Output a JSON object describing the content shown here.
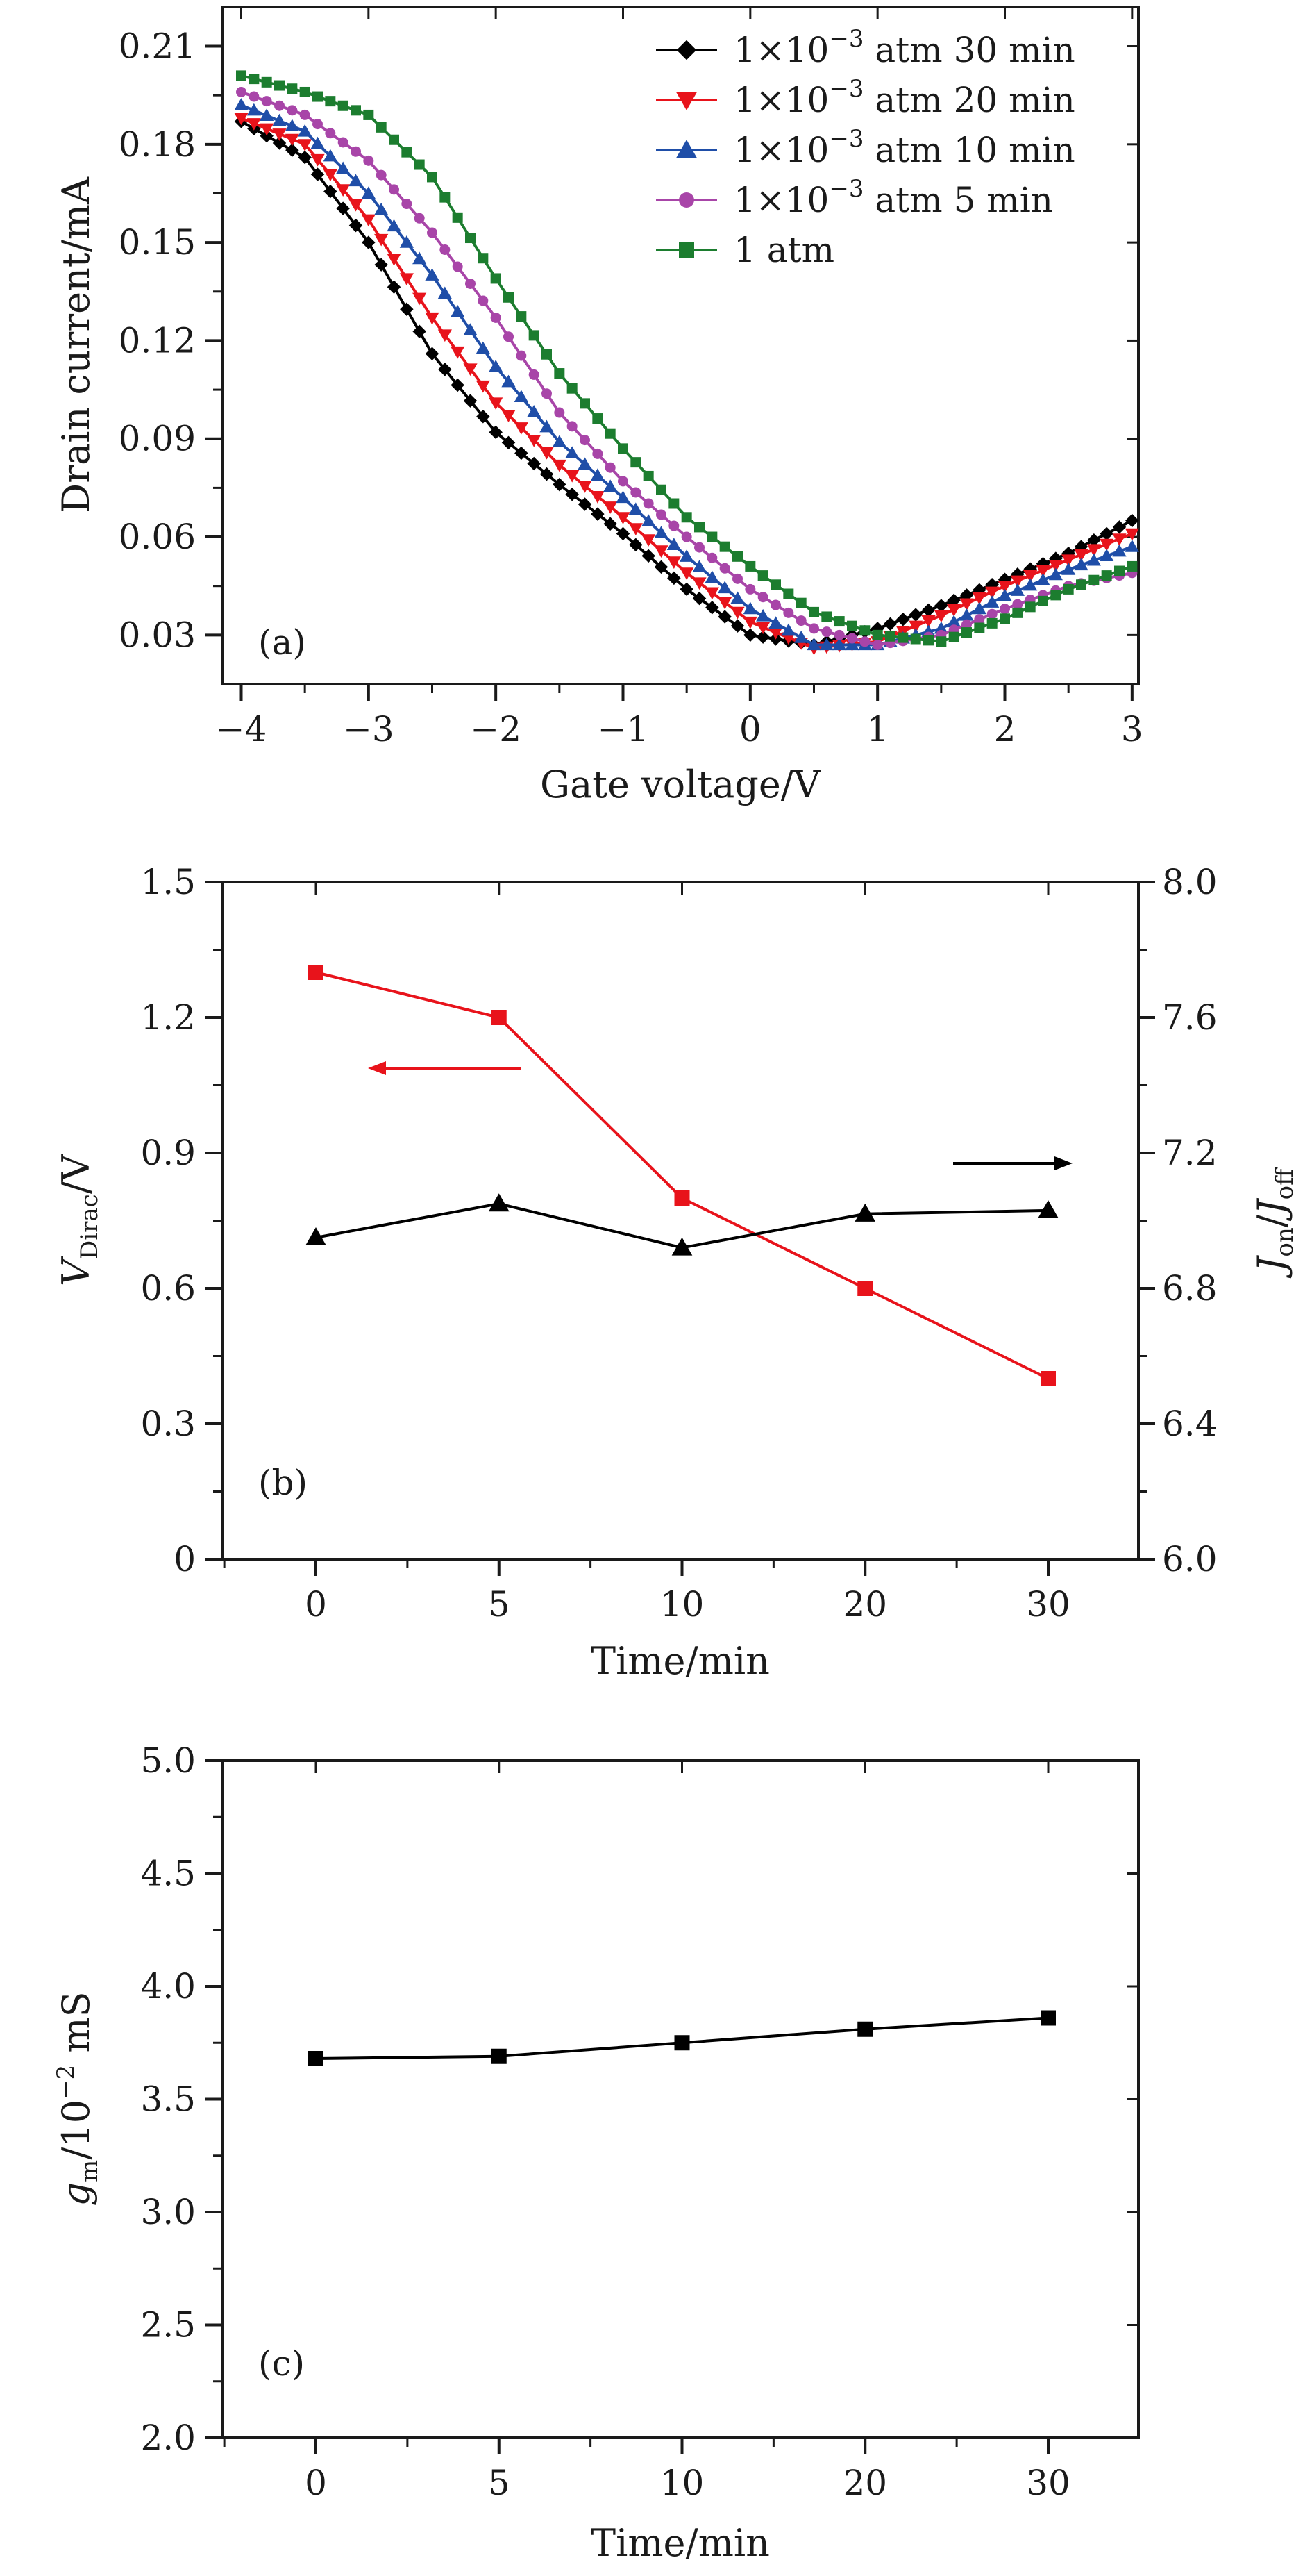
{
  "chart_data": [
    {
      "type": "line",
      "panel_label": "(a)",
      "xlabel": "Gate voltage/V",
      "ylabel": "Drain current/mA",
      "xlim": [
        -4.15,
        3.05
      ],
      "ylim": [
        0.015,
        0.222
      ],
      "x_ticks": [
        -4,
        -3,
        -2,
        -1,
        0,
        1,
        2,
        3
      ],
      "x_tick_labels": [
        "−4",
        "−3",
        "−2",
        "−1",
        "0",
        "1",
        "2",
        "3"
      ],
      "y_ticks": [
        0.03,
        0.06,
        0.09,
        0.12,
        0.15,
        0.18,
        0.21
      ],
      "y_tick_labels": [
        "0.03",
        "0.06",
        "0.09",
        "0.12",
        "0.15",
        "0.18",
        "0.21"
      ],
      "legend_position": "top-right",
      "x_points": [
        -4.0,
        -3.5,
        -3.0,
        -2.5,
        -2.0,
        -1.5,
        -1.0,
        -0.5,
        0.0,
        0.5,
        1.0,
        1.5,
        2.0,
        2.5,
        3.0
      ],
      "series": [
        {
          "name_prefix": "1×10",
          "name_sup": "−3",
          "name_suffix": " atm 30 min",
          "color": "#000000",
          "marker": "diamond",
          "values": [
            0.187,
            0.176,
            0.15,
            0.116,
            0.092,
            0.076,
            0.061,
            0.044,
            0.03,
            0.027,
            0.032,
            0.039,
            0.047,
            0.055,
            0.065
          ]
        },
        {
          "name_prefix": "1×10",
          "name_sup": "−3",
          "name_suffix": " atm 20 min",
          "color": "#e8131b",
          "marker": "triangle-down",
          "values": [
            0.188,
            0.18,
            0.157,
            0.127,
            0.101,
            0.082,
            0.066,
            0.049,
            0.034,
            0.026,
            0.028,
            0.036,
            0.045,
            0.053,
            0.061
          ]
        },
        {
          "name_prefix": "1×10",
          "name_sup": "−3",
          "name_suffix": " atm 10 min",
          "color": "#1f4ea8",
          "marker": "triangle-up",
          "values": [
            0.192,
            0.184,
            0.165,
            0.14,
            0.112,
            0.089,
            0.072,
            0.054,
            0.038,
            0.027,
            0.027,
            0.032,
            0.042,
            0.05,
            0.057
          ]
        },
        {
          "name_prefix": "1×10",
          "name_sup": "−3",
          "name_suffix": " atm 5 min",
          "color": "#a845a8",
          "marker": "circle",
          "values": [
            0.196,
            0.189,
            0.175,
            0.153,
            0.127,
            0.098,
            0.077,
            0.06,
            0.044,
            0.032,
            0.027,
            0.03,
            0.038,
            0.045,
            0.049
          ]
        },
        {
          "name_prefix": "1 atm",
          "name_sup": "",
          "name_suffix": "",
          "color": "#1c7d2f",
          "marker": "square",
          "values": [
            0.201,
            0.196,
            0.189,
            0.17,
            0.139,
            0.11,
            0.087,
            0.066,
            0.051,
            0.037,
            0.03,
            0.028,
            0.035,
            0.044,
            0.051
          ]
        }
      ]
    },
    {
      "type": "line",
      "panel_label": "(b)",
      "xlabel": "Time/min",
      "ylabel_main": "V",
      "ylabel_sub": "Dirac",
      "ylabel_tail": "/V",
      "y2label_a": "J",
      "y2label_a_sub": "on",
      "y2label_mid": "/",
      "y2label_b": "J",
      "y2label_b_sub": "off",
      "categories": [
        "0",
        "5",
        "10",
        "20",
        "30"
      ],
      "ylim": [
        0,
        1.5
      ],
      "y_ticks": [
        0,
        0.3,
        0.6,
        0.9,
        1.2,
        1.5
      ],
      "y_tick_labels": [
        "0",
        "0.3",
        "0.6",
        "0.9",
        "1.2",
        "1.5"
      ],
      "y2lim": [
        6.0,
        8.0
      ],
      "y2_ticks": [
        6.0,
        6.4,
        6.8,
        7.2,
        7.6,
        8.0
      ],
      "y2_tick_labels": [
        "6.0",
        "6.4",
        "6.8",
        "7.2",
        "7.6",
        "8.0"
      ],
      "series": [
        {
          "name": "V_Dirac",
          "axis": "left",
          "color": "#e8131b",
          "marker": "square",
          "values": [
            1.3,
            1.2,
            0.8,
            0.6,
            0.4
          ]
        },
        {
          "name": "J_on/J_off",
          "axis": "right",
          "color": "#000000",
          "marker": "triangle-up",
          "values": [
            6.95,
            7.05,
            6.92,
            7.02,
            7.03
          ]
        }
      ],
      "annotations": [
        {
          "type": "arrow",
          "direction": "left",
          "color": "#e8131b",
          "meaning": "left axis"
        },
        {
          "type": "arrow",
          "direction": "right",
          "color": "#000000",
          "meaning": "right axis"
        }
      ]
    },
    {
      "type": "line",
      "panel_label": "(c)",
      "xlabel": "Time/min",
      "ylabel_main": "g",
      "ylabel_sub": "m",
      "ylabel_mid": "/10",
      "ylabel_sup": "−2",
      "ylabel_tail": " mS",
      "categories": [
        "0",
        "5",
        "10",
        "20",
        "30"
      ],
      "ylim": [
        2.0,
        5.0
      ],
      "y_ticks": [
        2.0,
        2.5,
        3.0,
        3.5,
        4.0,
        4.5,
        5.0
      ],
      "y_tick_labels": [
        "2.0",
        "2.5",
        "3.0",
        "3.5",
        "4.0",
        "4.5",
        "5.0"
      ],
      "series": [
        {
          "name": "g_m",
          "color": "#000000",
          "marker": "square",
          "values": [
            3.68,
            3.69,
            3.75,
            3.81,
            3.86
          ]
        }
      ]
    }
  ]
}
